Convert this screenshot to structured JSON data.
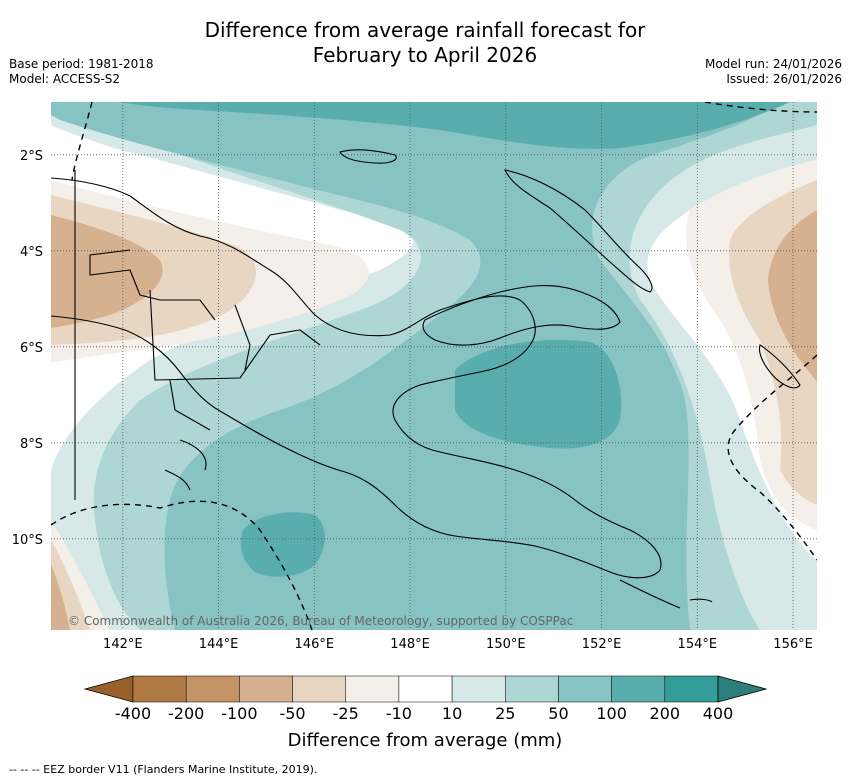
{
  "title_line1": "Difference from average rainfall forecast for",
  "title_line2": "February to April 2026",
  "base_period": "Base period: 1981-2018",
  "model": "Model: ACCESS-S2",
  "model_run": "Model run: 24/01/2026",
  "issued": "Issued: 26/01/2026",
  "copyright": "© Commonwealth of Australia 2026, Bureau of Meteorology, supported by COSPPac",
  "footer": "--  --  -- EEZ border V11 (Flanders Marine Institute, 2019).",
  "map": {
    "lon_ticks": [
      142,
      144,
      146,
      148,
      150,
      152,
      154,
      156
    ],
    "lat_ticks": [
      -2,
      -4,
      -6,
      -8,
      -10
    ],
    "lon_labels": [
      "142°E",
      "144°E",
      "146°E",
      "148°E",
      "150°E",
      "152°E",
      "154°E",
      "156°E"
    ],
    "lat_labels": [
      "2°S",
      "4°S",
      "6°S",
      "8°S",
      "10°S"
    ]
  },
  "colorbar": {
    "title": "Difference from average (mm)",
    "labels": [
      "-400",
      "-200",
      "-100",
      "-50",
      "-25",
      "-10",
      "10",
      "25",
      "50",
      "100",
      "200",
      "400"
    ],
    "colors": [
      "#b07a44",
      "#c49466",
      "#d6b190",
      "#e8d5c2",
      "#f4efe8",
      "#ffffff",
      "#d6e9e8",
      "#add6d5",
      "#86c3c2",
      "#5aadad",
      "#349c99"
    ],
    "extend_low_color": "#99602d",
    "extend_high_color": "#2e7f7c"
  },
  "colors": {
    "land_outline": "#000000",
    "grid": "#555555",
    "c10": "#d6e9e8",
    "c25": "#add6d5",
    "c50": "#86c3c2",
    "c100": "#5aadad",
    "n10": "#f4efe8",
    "n25": "#e8d5c2",
    "n50": "#d6b190"
  }
}
